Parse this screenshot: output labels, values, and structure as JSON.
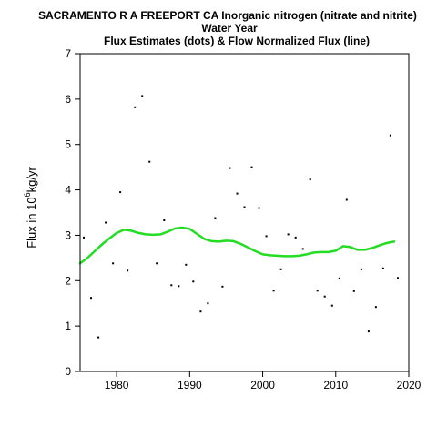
{
  "chart_data": {
    "type": "scatter",
    "title_lines": [
      "SACRAMENTO R A FREEPORT CA   Inorganic nitrogen (nitrate and nitrite)",
      "Water Year",
      "Flux Estimates (dots) & Flow Normalized Flux (line)"
    ],
    "ylabel_prefix": "Flux in 10",
    "ylabel_superscript": "6",
    "ylabel_suffix": "kg/yr",
    "xlabel": "",
    "xlim": [
      1975,
      2020
    ],
    "ylim": [
      0,
      7
    ],
    "x_ticks": [
      1980,
      1990,
      2000,
      2010,
      2020
    ],
    "y_ticks": [
      0,
      1,
      2,
      3,
      4,
      5,
      6,
      7
    ],
    "grid": false,
    "series": [
      {
        "kind": "points",
        "color": "#000000",
        "x": [
          1975.5,
          1976.5,
          1977.5,
          1978.5,
          1979.5,
          1980.5,
          1981.5,
          1982.5,
          1983.5,
          1984.5,
          1985.5,
          1986.5,
          1987.5,
          1988.5,
          1989.5,
          1990.5,
          1991.5,
          1992.5,
          1993.5,
          1994.5,
          1995.5,
          1996.5,
          1997.5,
          1998.5,
          1999.5,
          2000.5,
          2001.5,
          2002.5,
          2003.5,
          2004.5,
          2005.5,
          2006.5,
          2007.5,
          2008.5,
          2009.5,
          2010.5,
          2011.5,
          2012.5,
          2013.5,
          2014.5,
          2015.5,
          2016.5,
          2017.5,
          2018.5
        ],
        "y": [
          2.95,
          1.62,
          0.75,
          3.28,
          2.38,
          3.95,
          2.22,
          5.82,
          6.07,
          4.62,
          2.38,
          3.33,
          1.9,
          1.88,
          2.35,
          1.98,
          1.32,
          1.5,
          3.38,
          1.87,
          4.48,
          3.92,
          3.62,
          4.5,
          3.6,
          2.98,
          1.78,
          2.25,
          3.02,
          2.95,
          2.7,
          4.23,
          1.78,
          1.65,
          1.45,
          2.05,
          3.78,
          1.77,
          2.25,
          0.88,
          1.42,
          2.27,
          5.2,
          2.06
        ]
      },
      {
        "kind": "line",
        "color": "#22dd22",
        "x": [
          1975,
          1976,
          1977,
          1978,
          1979,
          1980,
          1981,
          1982,
          1983,
          1984,
          1985,
          1986,
          1987,
          1988,
          1989,
          1990,
          1991,
          1992,
          1993,
          1994,
          1995,
          1996,
          1997,
          1998,
          1999,
          2000,
          2001,
          2002,
          2003,
          2004,
          2005,
          2006,
          2007,
          2008,
          2009,
          2010,
          2011,
          2012,
          2013,
          2014,
          2015,
          2016,
          2017,
          2018
        ],
        "y": [
          2.38,
          2.5,
          2.65,
          2.8,
          2.93,
          3.05,
          3.12,
          3.1,
          3.05,
          3.02,
          3.01,
          3.02,
          3.08,
          3.15,
          3.17,
          3.14,
          3.03,
          2.92,
          2.87,
          2.86,
          2.88,
          2.87,
          2.81,
          2.73,
          2.65,
          2.58,
          2.56,
          2.55,
          2.54,
          2.54,
          2.55,
          2.58,
          2.62,
          2.63,
          2.63,
          2.66,
          2.76,
          2.74,
          2.68,
          2.68,
          2.72,
          2.78,
          2.83,
          2.86
        ]
      }
    ]
  }
}
